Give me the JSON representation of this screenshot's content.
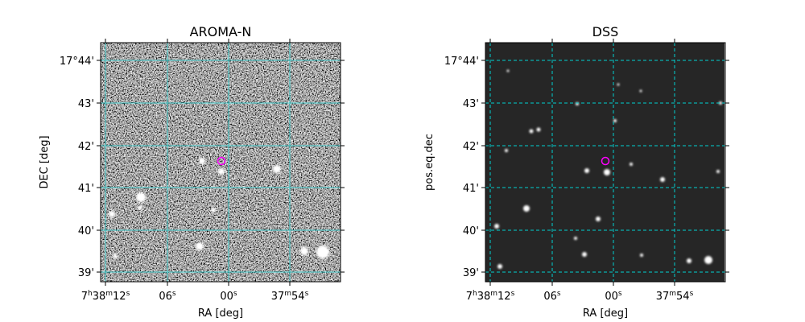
{
  "panels": [
    {
      "title": "AROMA-N",
      "xlabel": "RA [deg]",
      "ylabel": "DEC [deg]",
      "xticks": [
        [
          "7",
          "h",
          "38",
          "m",
          "12",
          "s"
        ],
        [
          "06",
          "s"
        ],
        [
          "00",
          "s"
        ],
        [
          "37",
          "m",
          "54",
          "s"
        ]
      ],
      "yticks": [
        "17°44'",
        "43'",
        "42'",
        "41'",
        "40'",
        "39'"
      ]
    },
    {
      "title": "DSS",
      "xlabel": "RA [deg]",
      "ylabel": "pos.eq.dec",
      "xticks": [
        [
          "7",
          "h",
          "38",
          "m",
          "12",
          "s"
        ],
        [
          "06",
          "s"
        ],
        [
          "00",
          "s"
        ],
        [
          "37",
          "m",
          "54",
          "s"
        ]
      ],
      "yticks": [
        "17°44'",
        "43'",
        "42'",
        "41'",
        "40'",
        "39'"
      ]
    }
  ]
}
